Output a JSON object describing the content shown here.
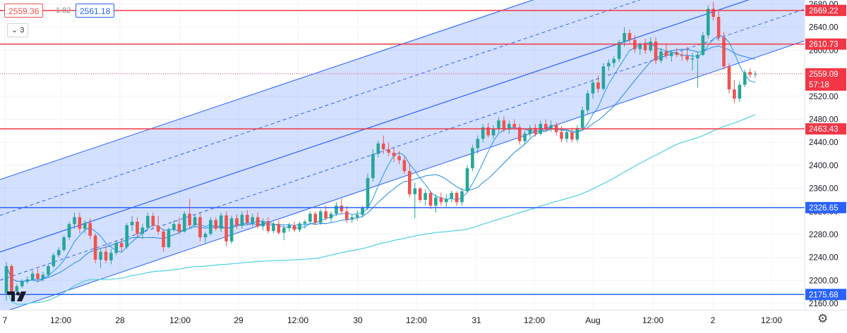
{
  "header": {
    "sell_price": "2559.36",
    "spread": "1.82",
    "buy_price": "2561.18",
    "collapse_button": "3"
  },
  "chart_data": {
    "type": "candlestick",
    "ylim": [
      2140,
      2685
    ],
    "y_ticks": [
      2680,
      2640,
      2600,
      2560,
      2520,
      2480,
      2440,
      2400,
      2360,
      2320,
      2280,
      2240,
      2200,
      2160
    ],
    "x_labels": [
      "7",
      "12:00",
      "28",
      "12:00",
      "29",
      "12:00",
      "30",
      "12:00",
      "31",
      "12:00",
      "Aug",
      "12:00",
      "2",
      "12:00"
    ],
    "price_labels": [
      {
        "text": "2669.22",
        "color": "#f23645"
      },
      {
        "text": "2610.73",
        "color": "#f23645"
      },
      {
        "text": "2559.09",
        "sub": "57:18",
        "color": "#f23645"
      },
      {
        "text": "2463.43",
        "color": "#f23645"
      },
      {
        "text": "2326.65",
        "color": "#2962ff"
      },
      {
        "text": "2175.68",
        "color": "#2962ff"
      }
    ],
    "horizontal_lines": [
      {
        "price": 2669.22,
        "color": "#f23645"
      },
      {
        "price": 2610.73,
        "color": "#f23645"
      },
      {
        "price": 2463.43,
        "color": "#f23645"
      },
      {
        "price": 2326.65,
        "color": "#2962ff"
      },
      {
        "price": 2175.68,
        "color": "#2962ff"
      }
    ],
    "current_price": 2559.09,
    "ohlc": [
      [
        2178,
        2232,
        2165,
        2225
      ],
      [
        2225,
        2228,
        2174,
        2181
      ],
      [
        2181,
        2194,
        2176,
        2190
      ],
      [
        2190,
        2202,
        2187,
        2198
      ],
      [
        2198,
        2207,
        2194,
        2202
      ],
      [
        2202,
        2217,
        2199,
        2212
      ],
      [
        2212,
        2220,
        2198,
        2203
      ],
      [
        2203,
        2215,
        2198,
        2210
      ],
      [
        2210,
        2228,
        2206,
        2225
      ],
      [
        2225,
        2248,
        2222,
        2244
      ],
      [
        2244,
        2258,
        2240,
        2253
      ],
      [
        2253,
        2278,
        2250,
        2275
      ],
      [
        2275,
        2302,
        2270,
        2298
      ],
      [
        2298,
        2318,
        2290,
        2310
      ],
      [
        2310,
        2318,
        2282,
        2290
      ],
      [
        2290,
        2305,
        2282,
        2300
      ],
      [
        2300,
        2308,
        2272,
        2278
      ],
      [
        2278,
        2282,
        2230,
        2236
      ],
      [
        2236,
        2255,
        2222,
        2250
      ],
      [
        2250,
        2262,
        2230,
        2235
      ],
      [
        2235,
        2255,
        2228,
        2248
      ],
      [
        2248,
        2270,
        2244,
        2265
      ],
      [
        2265,
        2273,
        2250,
        2258
      ],
      [
        2258,
        2300,
        2255,
        2296
      ],
      [
        2296,
        2312,
        2286,
        2302
      ],
      [
        2302,
        2310,
        2276,
        2281
      ],
      [
        2281,
        2298,
        2272,
        2292
      ],
      [
        2292,
        2318,
        2288,
        2312
      ],
      [
        2312,
        2318,
        2290,
        2295
      ],
      [
        2295,
        2312,
        2280,
        2285
      ],
      [
        2285,
        2290,
        2250,
        2258
      ],
      [
        2258,
        2292,
        2256,
        2288
      ],
      [
        2288,
        2305,
        2285,
        2298
      ],
      [
        2298,
        2310,
        2280,
        2285
      ],
      [
        2285,
        2320,
        2283,
        2316
      ],
      [
        2316,
        2342,
        2290,
        2296
      ],
      [
        2296,
        2314,
        2292,
        2310
      ],
      [
        2310,
        2318,
        2268,
        2275
      ],
      [
        2275,
        2285,
        2265,
        2281
      ],
      [
        2281,
        2310,
        2278,
        2305
      ],
      [
        2305,
        2310,
        2286,
        2290
      ],
      [
        2290,
        2318,
        2284,
        2313
      ],
      [
        2313,
        2320,
        2260,
        2268
      ],
      [
        2268,
        2313,
        2264,
        2308
      ],
      [
        2308,
        2315,
        2290,
        2295
      ],
      [
        2295,
        2320,
        2290,
        2314
      ],
      [
        2314,
        2322,
        2296,
        2300
      ],
      [
        2300,
        2316,
        2294,
        2310
      ],
      [
        2310,
        2318,
        2290,
        2294
      ],
      [
        2294,
        2308,
        2287,
        2303
      ],
      [
        2303,
        2310,
        2282,
        2286
      ],
      [
        2286,
        2302,
        2282,
        2298
      ],
      [
        2298,
        2305,
        2280,
        2283
      ],
      [
        2283,
        2296,
        2270,
        2291
      ],
      [
        2291,
        2300,
        2285,
        2296
      ],
      [
        2296,
        2302,
        2284,
        2288
      ],
      [
        2288,
        2303,
        2284,
        2299
      ],
      [
        2299,
        2306,
        2290,
        2302
      ],
      [
        2302,
        2320,
        2298,
        2316
      ],
      [
        2316,
        2320,
        2296,
        2300
      ],
      [
        2300,
        2324,
        2297,
        2320
      ],
      [
        2320,
        2330,
        2304,
        2308
      ],
      [
        2308,
        2320,
        2302,
        2316
      ],
      [
        2316,
        2336,
        2312,
        2330
      ],
      [
        2330,
        2342,
        2316,
        2320
      ],
      [
        2320,
        2330,
        2300,
        2306
      ],
      [
        2306,
        2315,
        2300,
        2310
      ],
      [
        2310,
        2322,
        2304,
        2314
      ],
      [
        2314,
        2330,
        2310,
        2326
      ],
      [
        2326,
        2386,
        2322,
        2378
      ],
      [
        2378,
        2428,
        2372,
        2420
      ],
      [
        2420,
        2443,
        2414,
        2438
      ],
      [
        2438,
        2452,
        2420,
        2428
      ],
      [
        2428,
        2440,
        2416,
        2422
      ],
      [
        2422,
        2430,
        2406,
        2416
      ],
      [
        2416,
        2425,
        2402,
        2409
      ],
      [
        2409,
        2415,
        2386,
        2390
      ],
      [
        2390,
        2404,
        2344,
        2350
      ],
      [
        2350,
        2370,
        2308,
        2360
      ],
      [
        2360,
        2362,
        2335,
        2340
      ],
      [
        2340,
        2358,
        2330,
        2352
      ],
      [
        2352,
        2356,
        2324,
        2330
      ],
      [
        2330,
        2350,
        2318,
        2344
      ],
      [
        2344,
        2353,
        2330,
        2336
      ],
      [
        2336,
        2350,
        2328,
        2342
      ],
      [
        2342,
        2356,
        2336,
        2352
      ],
      [
        2352,
        2355,
        2330,
        2336
      ],
      [
        2336,
        2360,
        2330,
        2355
      ],
      [
        2355,
        2400,
        2352,
        2395
      ],
      [
        2395,
        2436,
        2390,
        2430
      ],
      [
        2430,
        2452,
        2420,
        2446
      ],
      [
        2446,
        2472,
        2440,
        2466
      ],
      [
        2466,
        2474,
        2448,
        2452
      ],
      [
        2452,
        2470,
        2446,
        2463
      ],
      [
        2463,
        2484,
        2458,
        2478
      ],
      [
        2478,
        2485,
        2458,
        2462
      ],
      [
        2462,
        2478,
        2455,
        2472
      ],
      [
        2472,
        2480,
        2462,
        2466
      ],
      [
        2466,
        2472,
        2436,
        2442
      ],
      [
        2442,
        2460,
        2436,
        2455
      ],
      [
        2455,
        2470,
        2448,
        2465
      ],
      [
        2465,
        2472,
        2450,
        2455
      ],
      [
        2455,
        2478,
        2452,
        2472
      ],
      [
        2472,
        2480,
        2458,
        2464
      ],
      [
        2464,
        2478,
        2458,
        2470
      ],
      [
        2470,
        2475,
        2452,
        2458
      ],
      [
        2458,
        2468,
        2440,
        2446
      ],
      [
        2446,
        2462,
        2440,
        2458
      ],
      [
        2458,
        2466,
        2440,
        2445
      ],
      [
        2445,
        2470,
        2440,
        2465
      ],
      [
        2465,
        2502,
        2460,
        2496
      ],
      [
        2496,
        2530,
        2490,
        2525
      ],
      [
        2525,
        2550,
        2516,
        2544
      ],
      [
        2544,
        2556,
        2526,
        2533
      ],
      [
        2533,
        2578,
        2530,
        2572
      ],
      [
        2572,
        2584,
        2564,
        2578
      ],
      [
        2578,
        2590,
        2570,
        2585
      ],
      [
        2585,
        2618,
        2580,
        2614
      ],
      [
        2614,
        2640,
        2606,
        2630
      ],
      [
        2630,
        2636,
        2612,
        2618
      ],
      [
        2618,
        2626,
        2596,
        2602
      ],
      [
        2602,
        2614,
        2592,
        2610
      ],
      [
        2610,
        2620,
        2594,
        2600
      ],
      [
        2600,
        2622,
        2596,
        2615
      ],
      [
        2615,
        2622,
        2576,
        2582
      ],
      [
        2582,
        2604,
        2578,
        2598
      ],
      [
        2598,
        2610,
        2585,
        2590
      ],
      [
        2590,
        2600,
        2580,
        2596
      ],
      [
        2596,
        2604,
        2588,
        2592
      ],
      [
        2592,
        2598,
        2582,
        2590
      ],
      [
        2590,
        2606,
        2580,
        2584
      ],
      [
        2584,
        2596,
        2565,
        2586
      ],
      [
        2586,
        2598,
        2535,
        2592
      ],
      [
        2592,
        2632,
        2590,
        2626
      ],
      [
        2626,
        2678,
        2620,
        2672
      ],
      [
        2672,
        2684,
        2652,
        2658
      ],
      [
        2658,
        2668,
        2616,
        2622
      ],
      [
        2622,
        2632,
        2566,
        2572
      ],
      [
        2572,
        2578,
        2525,
        2532
      ],
      [
        2532,
        2548,
        2508,
        2516
      ],
      [
        2516,
        2546,
        2510,
        2540
      ],
      [
        2540,
        2566,
        2536,
        2562
      ],
      [
        2562,
        2568,
        2552,
        2558
      ],
      [
        2558,
        2564,
        2552,
        2559.09
      ]
    ]
  }
}
